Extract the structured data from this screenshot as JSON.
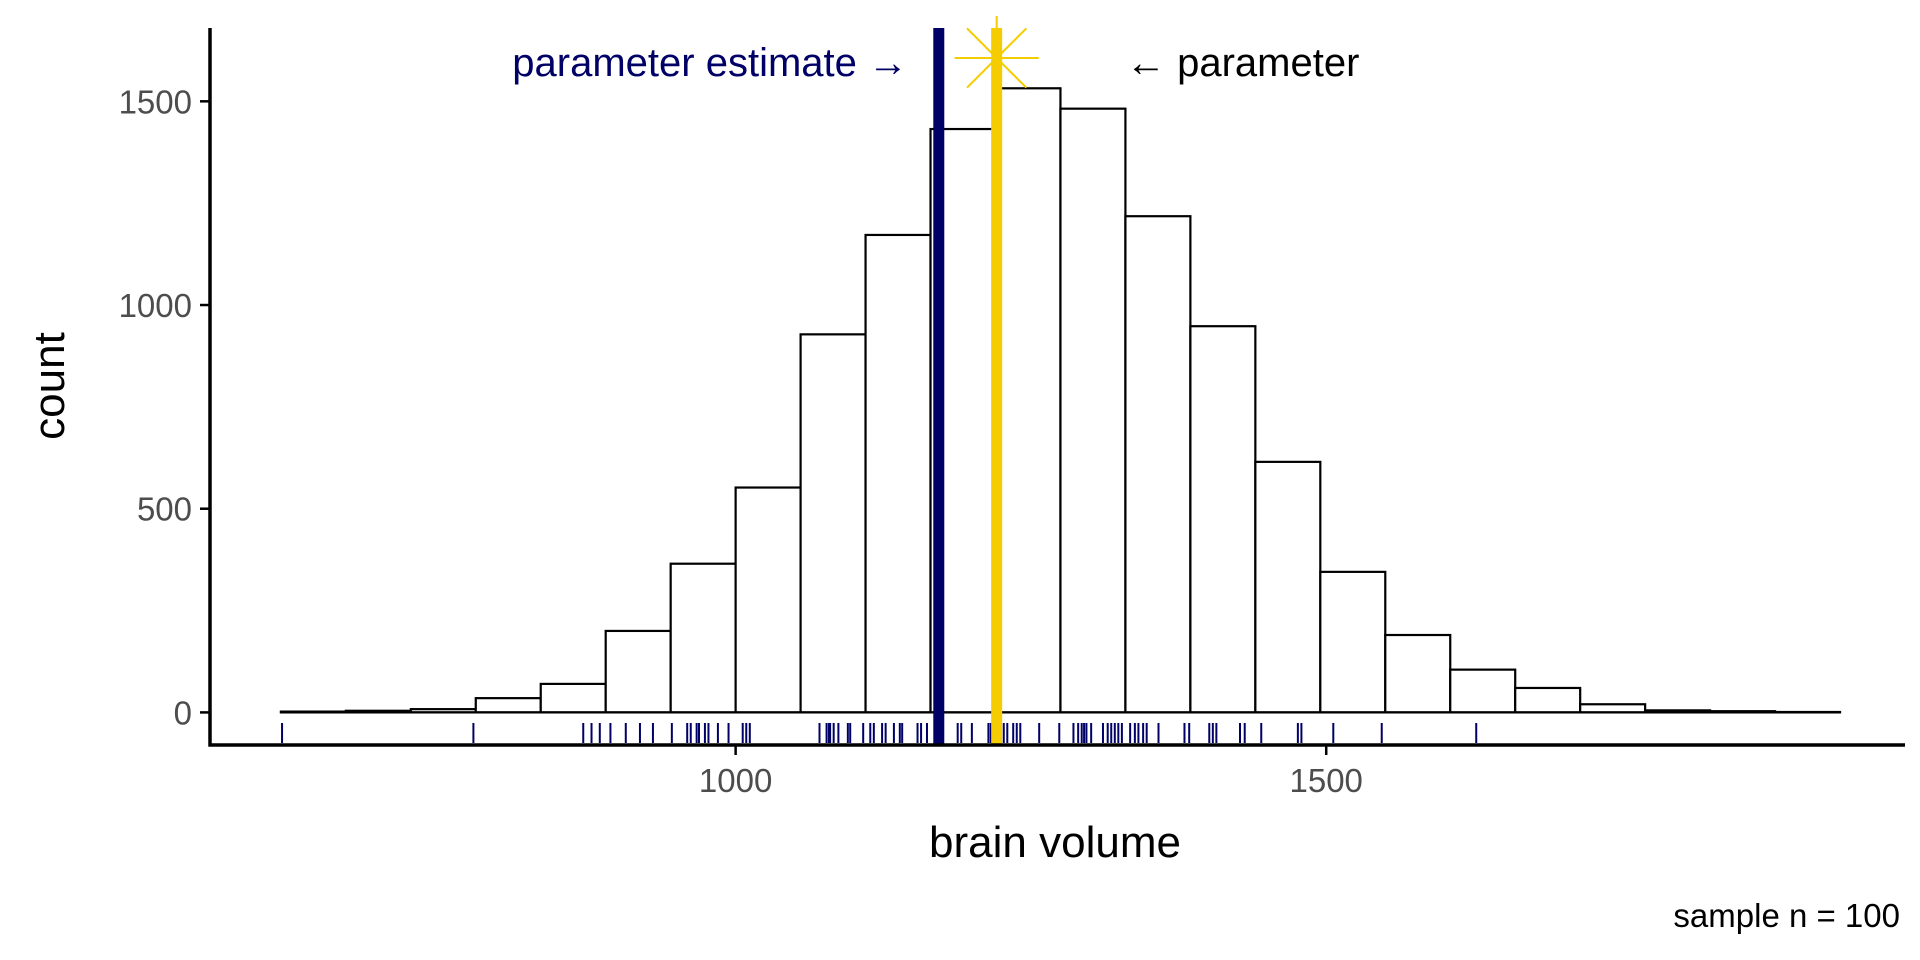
{
  "chart_data": {
    "type": "histogram",
    "xlabel": "brain volume",
    "ylabel": "count",
    "caption": "sample n = 100",
    "x_ticks": [
      1000,
      1500
    ],
    "y_ticks": [
      0,
      500,
      1000,
      1500
    ],
    "xlim": [
      555,
      1990
    ],
    "ylim": [
      -80,
      1680
    ],
    "bins": [
      {
        "x0": 615,
        "x1": 670,
        "count": 2
      },
      {
        "x0": 670,
        "x1": 725,
        "count": 4
      },
      {
        "x0": 725,
        "x1": 780,
        "count": 8
      },
      {
        "x0": 780,
        "x1": 835,
        "count": 35
      },
      {
        "x0": 835,
        "x1": 890,
        "count": 70
      },
      {
        "x0": 890,
        "x1": 945,
        "count": 200
      },
      {
        "x0": 945,
        "x1": 1000,
        "count": 365
      },
      {
        "x0": 1000,
        "x1": 1055,
        "count": 552
      },
      {
        "x0": 1055,
        "x1": 1110,
        "count": 928
      },
      {
        "x0": 1110,
        "x1": 1165,
        "count": 1172
      },
      {
        "x0": 1165,
        "x1": 1220,
        "count": 1432
      },
      {
        "x0": 1220,
        "x1": 1275,
        "count": 1532
      },
      {
        "x0": 1275,
        "x1": 1330,
        "count": 1482
      },
      {
        "x0": 1330,
        "x1": 1385,
        "count": 1218
      },
      {
        "x0": 1385,
        "x1": 1440,
        "count": 948
      },
      {
        "x0": 1440,
        "x1": 1495,
        "count": 615
      },
      {
        "x0": 1495,
        "x1": 1550,
        "count": 345
      },
      {
        "x0": 1550,
        "x1": 1605,
        "count": 190
      },
      {
        "x0": 1605,
        "x1": 1660,
        "count": 105
      },
      {
        "x0": 1660,
        "x1": 1715,
        "count": 60
      },
      {
        "x0": 1715,
        "x1": 1770,
        "count": 20
      },
      {
        "x0": 1770,
        "x1": 1825,
        "count": 5
      },
      {
        "x0": 1825,
        "x1": 1880,
        "count": 3
      },
      {
        "x0": 1880,
        "x1": 1935,
        "count": 1
      }
    ],
    "parameter_estimate": 1172,
    "parameter": 1221,
    "rug_values": [
      616,
      778,
      871,
      878,
      885,
      894,
      907,
      919,
      930,
      946,
      959,
      962,
      967,
      969,
      974,
      977,
      985,
      994,
      1006,
      1009,
      1012,
      1071,
      1077,
      1079,
      1080,
      1083,
      1087,
      1095,
      1097,
      1108,
      1114,
      1117,
      1124,
      1127,
      1134,
      1139,
      1141,
      1154,
      1157,
      1162,
      1169,
      1171,
      1174,
      1188,
      1191,
      1200,
      1214,
      1216,
      1218,
      1219,
      1223,
      1227,
      1230,
      1235,
      1238,
      1241,
      1257,
      1274,
      1286,
      1290,
      1293,
      1295,
      1297,
      1301,
      1311,
      1315,
      1318,
      1321,
      1324,
      1327,
      1334,
      1338,
      1341,
      1345,
      1348,
      1358,
      1380,
      1384,
      1401,
      1404,
      1407,
      1427,
      1431,
      1445,
      1476,
      1479,
      1506,
      1547,
      1627
    ],
    "annotations": {
      "estimate_label": "parameter estimate →",
      "parameter_label": "← parameter"
    },
    "colors": {
      "estimate": "#000066",
      "parameter": "#f5cc00",
      "bar_fill": "#ffffff",
      "bar_stroke": "#000000",
      "axis": "#000000",
      "tick_label": "#4d4d4d"
    },
    "grid": false,
    "legend": "none"
  }
}
